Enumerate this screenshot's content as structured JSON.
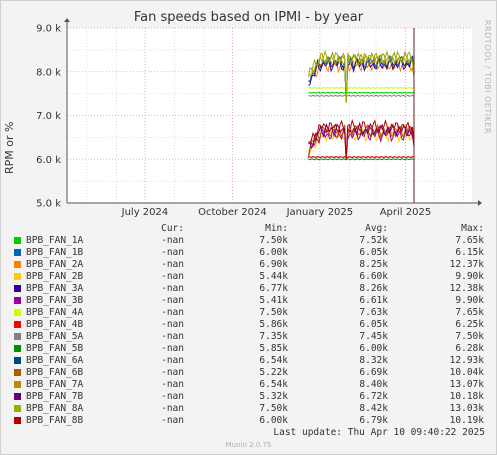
{
  "title": "Fan speeds based on IPMI - by year",
  "watermark": "RRDTOOL / TOBI OETIKER",
  "legend_headers": {
    "cur": "Cur:",
    "min": "Min:",
    "avg": "Avg:",
    "max": "Max:"
  },
  "legend": [
    {
      "name": "BPB_FAN_1A",
      "color": "#00cc00",
      "cur": "-nan",
      "min": "7.50k",
      "avg": "7.52k",
      "max": "7.65k"
    },
    {
      "name": "BPB_FAN_1B",
      "color": "#0066b3",
      "cur": "-nan",
      "min": "6.00k",
      "avg": "6.05k",
      "max": "6.15k"
    },
    {
      "name": "BPB_FAN_2A",
      "color": "#ff8000",
      "cur": "-nan",
      "min": "6.90k",
      "avg": "8.25k",
      "max": "12.37k"
    },
    {
      "name": "BPB_FAN_2B",
      "color": "#ffcc00",
      "cur": "-nan",
      "min": "5.44k",
      "avg": "6.60k",
      "max": "9.90k"
    },
    {
      "name": "BPB_FAN_3A",
      "color": "#330099",
      "cur": "-nan",
      "min": "6.77k",
      "avg": "8.26k",
      "max": "12.38k"
    },
    {
      "name": "BPB_FAN_3B",
      "color": "#990099",
      "cur": "-nan",
      "min": "5.41k",
      "avg": "6.61k",
      "max": "9.90k"
    },
    {
      "name": "BPB_FAN_4A",
      "color": "#ccff00",
      "cur": "-nan",
      "min": "7.50k",
      "avg": "7.63k",
      "max": "7.65k"
    },
    {
      "name": "BPB_FAN_4B",
      "color": "#ff0000",
      "cur": "-nan",
      "min": "5.86k",
      "avg": "6.05k",
      "max": "6.25k"
    },
    {
      "name": "BPB_FAN_5A",
      "color": "#808080",
      "cur": "-nan",
      "min": "7.35k",
      "avg": "7.45k",
      "max": "7.50k"
    },
    {
      "name": "BPB_FAN_5B",
      "color": "#008f00",
      "cur": "-nan",
      "min": "5.85k",
      "avg": "6.00k",
      "max": "6.28k"
    },
    {
      "name": "BPB_FAN_6A",
      "color": "#00487d",
      "cur": "-nan",
      "min": "6.54k",
      "avg": "8.32k",
      "max": "12.93k"
    },
    {
      "name": "BPB_FAN_6B",
      "color": "#b35a00",
      "cur": "-nan",
      "min": "5.22k",
      "avg": "6.69k",
      "max": "10.04k"
    },
    {
      "name": "BPB_FAN_7A",
      "color": "#b38f00",
      "cur": "-nan",
      "min": "6.54k",
      "avg": "8.40k",
      "max": "13.07k"
    },
    {
      "name": "BPB_FAN_7B",
      "color": "#6b006b",
      "cur": "-nan",
      "min": "5.32k",
      "avg": "6.72k",
      "max": "10.18k"
    },
    {
      "name": "BPB_FAN_8A",
      "color": "#8fb300",
      "cur": "-nan",
      "min": "7.50k",
      "avg": "8.42k",
      "max": "13.03k"
    },
    {
      "name": "BPB_FAN_8B",
      "color": "#b30000",
      "cur": "-nan",
      "min": "6.00k",
      "avg": "6.79k",
      "max": "10.19k"
    }
  ],
  "last_update": "Last update: Thu Apr 10 09:40:22 2025",
  "footer": "Munin 2.0.75",
  "chart_data": {
    "type": "line",
    "title": "Fan speeds based on IPMI - by year",
    "ylabel": "RPM or %",
    "ylim": [
      5000,
      9000
    ],
    "yticks": [
      5000,
      6000,
      7000,
      8000,
      9000
    ],
    "ytick_labels": [
      "5.0 k",
      "6.0 k",
      "7.0 k",
      "8.0 k",
      "9.0 k"
    ],
    "x_range": [
      "2024-04-10",
      "2025-06-10"
    ],
    "xticks": [
      {
        "date": "2024-07-01",
        "label": "July 2024"
      },
      {
        "date": "2024-10-01",
        "label": "October 2024"
      },
      {
        "date": "2025-01-01",
        "label": "January 2025"
      },
      {
        "date": "2025-04-01",
        "label": "April 2025"
      }
    ],
    "data_start": "2024-12-20",
    "current_time": "2025-04-10",
    "grid": true,
    "series_levels": [
      {
        "name": "BPB_FAN_1A",
        "level": 7520
      },
      {
        "name": "BPB_FAN_1B",
        "level": 6050
      },
      {
        "name": "BPB_FAN_2A",
        "level": 8250
      },
      {
        "name": "BPB_FAN_2B",
        "level": 6600
      },
      {
        "name": "BPB_FAN_3A",
        "level": 8260
      },
      {
        "name": "BPB_FAN_3B",
        "level": 6610
      },
      {
        "name": "BPB_FAN_4A",
        "level": 7630
      },
      {
        "name": "BPB_FAN_4B",
        "level": 6050
      },
      {
        "name": "BPB_FAN_5A",
        "level": 7450
      },
      {
        "name": "BPB_FAN_5B",
        "level": 6000
      },
      {
        "name": "BPB_FAN_6A",
        "level": 8320
      },
      {
        "name": "BPB_FAN_6B",
        "level": 6690
      },
      {
        "name": "BPB_FAN_7A",
        "level": 8400
      },
      {
        "name": "BPB_FAN_7B",
        "level": 6720
      },
      {
        "name": "BPB_FAN_8A",
        "level": 8420
      },
      {
        "name": "BPB_FAN_8B",
        "level": 6790
      }
    ]
  }
}
